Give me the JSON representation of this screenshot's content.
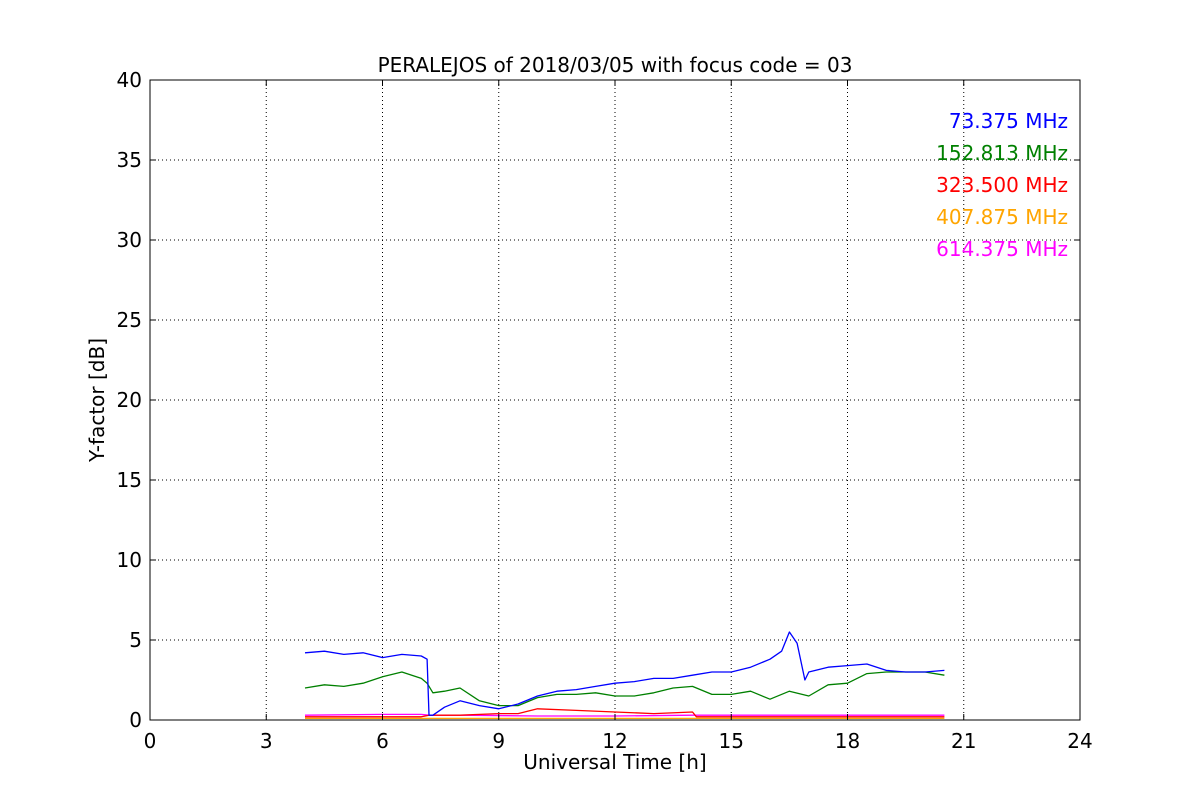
{
  "chart_data": {
    "type": "line",
    "title": "PERALEJOS of 2018/03/05 with focus code = 03",
    "xlabel": "Universal Time [h]",
    "ylabel": "Y-factor [dB]",
    "xlim": [
      0,
      24
    ],
    "ylim": [
      0,
      40
    ],
    "xticks": [
      0,
      3,
      6,
      9,
      12,
      15,
      18,
      21,
      24
    ],
    "yticks": [
      0,
      5,
      10,
      15,
      20,
      25,
      30,
      35,
      40
    ],
    "xtick_labels": [
      "0",
      "3",
      "6",
      "9",
      "12",
      "15",
      "18",
      "21",
      "24"
    ],
    "ytick_labels": [
      "0",
      "5",
      "10",
      "15",
      "20",
      "25",
      "30",
      "35",
      "40"
    ],
    "grid": true,
    "legend_position": "top-right",
    "series": [
      {
        "name": "73.375 MHz",
        "color": "#0000ff",
        "x": [
          4.0,
          4.5,
          5.0,
          5.5,
          6.0,
          6.5,
          7.0,
          7.15,
          7.2,
          7.3,
          7.6,
          8.0,
          8.5,
          9.0,
          9.5,
          10.0,
          10.5,
          11.0,
          11.5,
          12.0,
          12.5,
          13.0,
          13.5,
          14.0,
          14.5,
          15.0,
          15.5,
          16.0,
          16.3,
          16.5,
          16.7,
          16.9,
          17.0,
          17.5,
          18.0,
          18.5,
          19.0,
          19.5,
          20.0,
          20.5
        ],
        "y": [
          4.2,
          4.3,
          4.1,
          4.2,
          3.9,
          4.1,
          4.0,
          3.8,
          0.3,
          0.3,
          0.8,
          1.2,
          0.9,
          0.7,
          1.0,
          1.5,
          1.8,
          1.9,
          2.1,
          2.3,
          2.4,
          2.6,
          2.6,
          2.8,
          3.0,
          3.0,
          3.3,
          3.8,
          4.3,
          5.5,
          4.8,
          2.5,
          3.0,
          3.3,
          3.4,
          3.5,
          3.1,
          3.0,
          3.0,
          3.1
        ]
      },
      {
        "name": "152.813 MHz",
        "color": "#008000",
        "x": [
          4.0,
          4.5,
          5.0,
          5.5,
          6.0,
          6.5,
          7.0,
          7.15,
          7.3,
          7.6,
          8.0,
          8.5,
          9.0,
          9.5,
          10.0,
          10.5,
          11.0,
          11.5,
          12.0,
          12.5,
          13.0,
          13.5,
          14.0,
          14.5,
          15.0,
          15.5,
          16.0,
          16.5,
          17.0,
          17.5,
          18.0,
          18.5,
          19.0,
          19.5,
          20.0,
          20.5
        ],
        "y": [
          2.0,
          2.2,
          2.1,
          2.3,
          2.7,
          3.0,
          2.6,
          2.3,
          1.7,
          1.8,
          2.0,
          1.2,
          0.9,
          0.9,
          1.4,
          1.6,
          1.6,
          1.7,
          1.5,
          1.5,
          1.7,
          2.0,
          2.1,
          1.6,
          1.6,
          1.8,
          1.3,
          1.8,
          1.5,
          2.2,
          2.3,
          2.9,
          3.0,
          3.0,
          3.0,
          2.8
        ]
      },
      {
        "name": "323.500 MHz",
        "color": "#ff0000",
        "x": [
          4.0,
          5.0,
          6.0,
          7.0,
          7.2,
          7.3,
          8.0,
          9.0,
          9.5,
          10.0,
          11.0,
          12.0,
          13.0,
          14.0,
          14.1,
          15.0,
          16.0,
          17.0,
          18.0,
          19.0,
          20.0,
          20.5
        ],
        "y": [
          0.2,
          0.2,
          0.2,
          0.2,
          0.3,
          0.3,
          0.3,
          0.4,
          0.4,
          0.7,
          0.6,
          0.5,
          0.4,
          0.5,
          0.2,
          0.2,
          0.2,
          0.2,
          0.2,
          0.2,
          0.2,
          0.2
        ]
      },
      {
        "name": "407.875 MHz",
        "color": "#ffa500",
        "x": [
          4.0,
          6.0,
          8.0,
          10.0,
          12.0,
          14.0,
          16.0,
          18.0,
          20.5
        ],
        "y": [
          0.1,
          0.1,
          0.1,
          0.1,
          0.1,
          0.1,
          0.1,
          0.1,
          0.1
        ]
      },
      {
        "name": "614.375 MHz",
        "color": "#ff00ff",
        "x": [
          4.0,
          6.0,
          7.0,
          7.2,
          8.0,
          10.0,
          12.0,
          14.0,
          16.0,
          18.0,
          20.5
        ],
        "y": [
          0.3,
          0.35,
          0.35,
          0.3,
          0.3,
          0.25,
          0.25,
          0.3,
          0.3,
          0.3,
          0.3
        ]
      }
    ]
  }
}
